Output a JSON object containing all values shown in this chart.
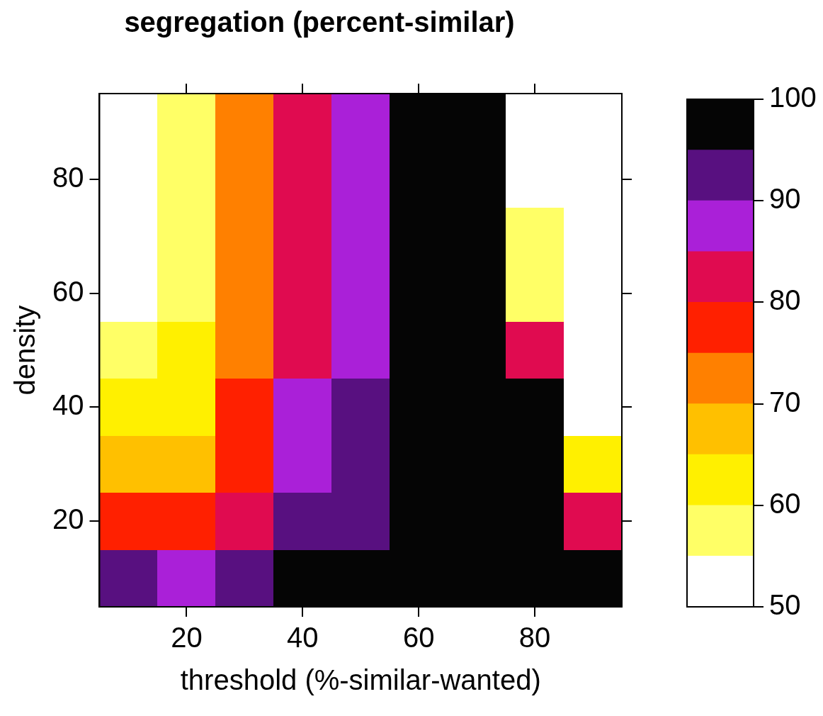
{
  "chart_data": {
    "type": "heatmap",
    "title": "segregation (percent-similar)",
    "xlabel": "threshold (%-similar-wanted)",
    "ylabel": "density",
    "categories": [
      null,
      "20",
      null,
      "40",
      null,
      "60",
      null,
      "80",
      null
    ],
    "y_categories": [
      null,
      "80",
      null,
      "60",
      null,
      "40",
      null,
      "20",
      null
    ],
    "cells": [
      [
        52.5,
        57.5,
        72.5,
        82.5,
        87.5,
        97.5,
        97.5,
        52.5,
        52.5
      ],
      [
        52.5,
        57.5,
        72.5,
        82.5,
        87.5,
        97.5,
        97.5,
        52.5,
        52.5
      ],
      [
        52.5,
        57.5,
        72.5,
        82.5,
        87.5,
        97.5,
        97.5,
        57.5,
        52.5
      ],
      [
        52.5,
        57.5,
        72.5,
        82.5,
        87.5,
        97.5,
        97.5,
        57.5,
        52.5
      ],
      [
        57.5,
        62.5,
        72.5,
        82.5,
        87.5,
        97.5,
        97.5,
        82.5,
        52.5
      ],
      [
        62.5,
        62.5,
        77.5,
        87.5,
        92.5,
        97.5,
        97.5,
        97.5,
        52.5
      ],
      [
        67.5,
        67.5,
        77.5,
        87.5,
        92.5,
        97.5,
        97.5,
        97.5,
        62.5
      ],
      [
        77.5,
        77.5,
        82.5,
        92.5,
        92.5,
        97.5,
        97.5,
        97.5,
        82.5
      ],
      [
        92.5,
        87.5,
        92.5,
        97.5,
        97.5,
        97.5,
        97.5,
        97.5,
        97.5
      ]
    ],
    "colors": [
      "#ffffff",
      "#ffff66",
      "#fff000",
      "#ffc000",
      "#ff8000",
      "#ff2000",
      "#e00b50",
      "#aa20d8",
      "#581080",
      "#050505"
    ],
    "clim": [
      50,
      100
    ],
    "cticks": [
      50,
      60,
      70,
      80,
      90,
      100
    ]
  }
}
